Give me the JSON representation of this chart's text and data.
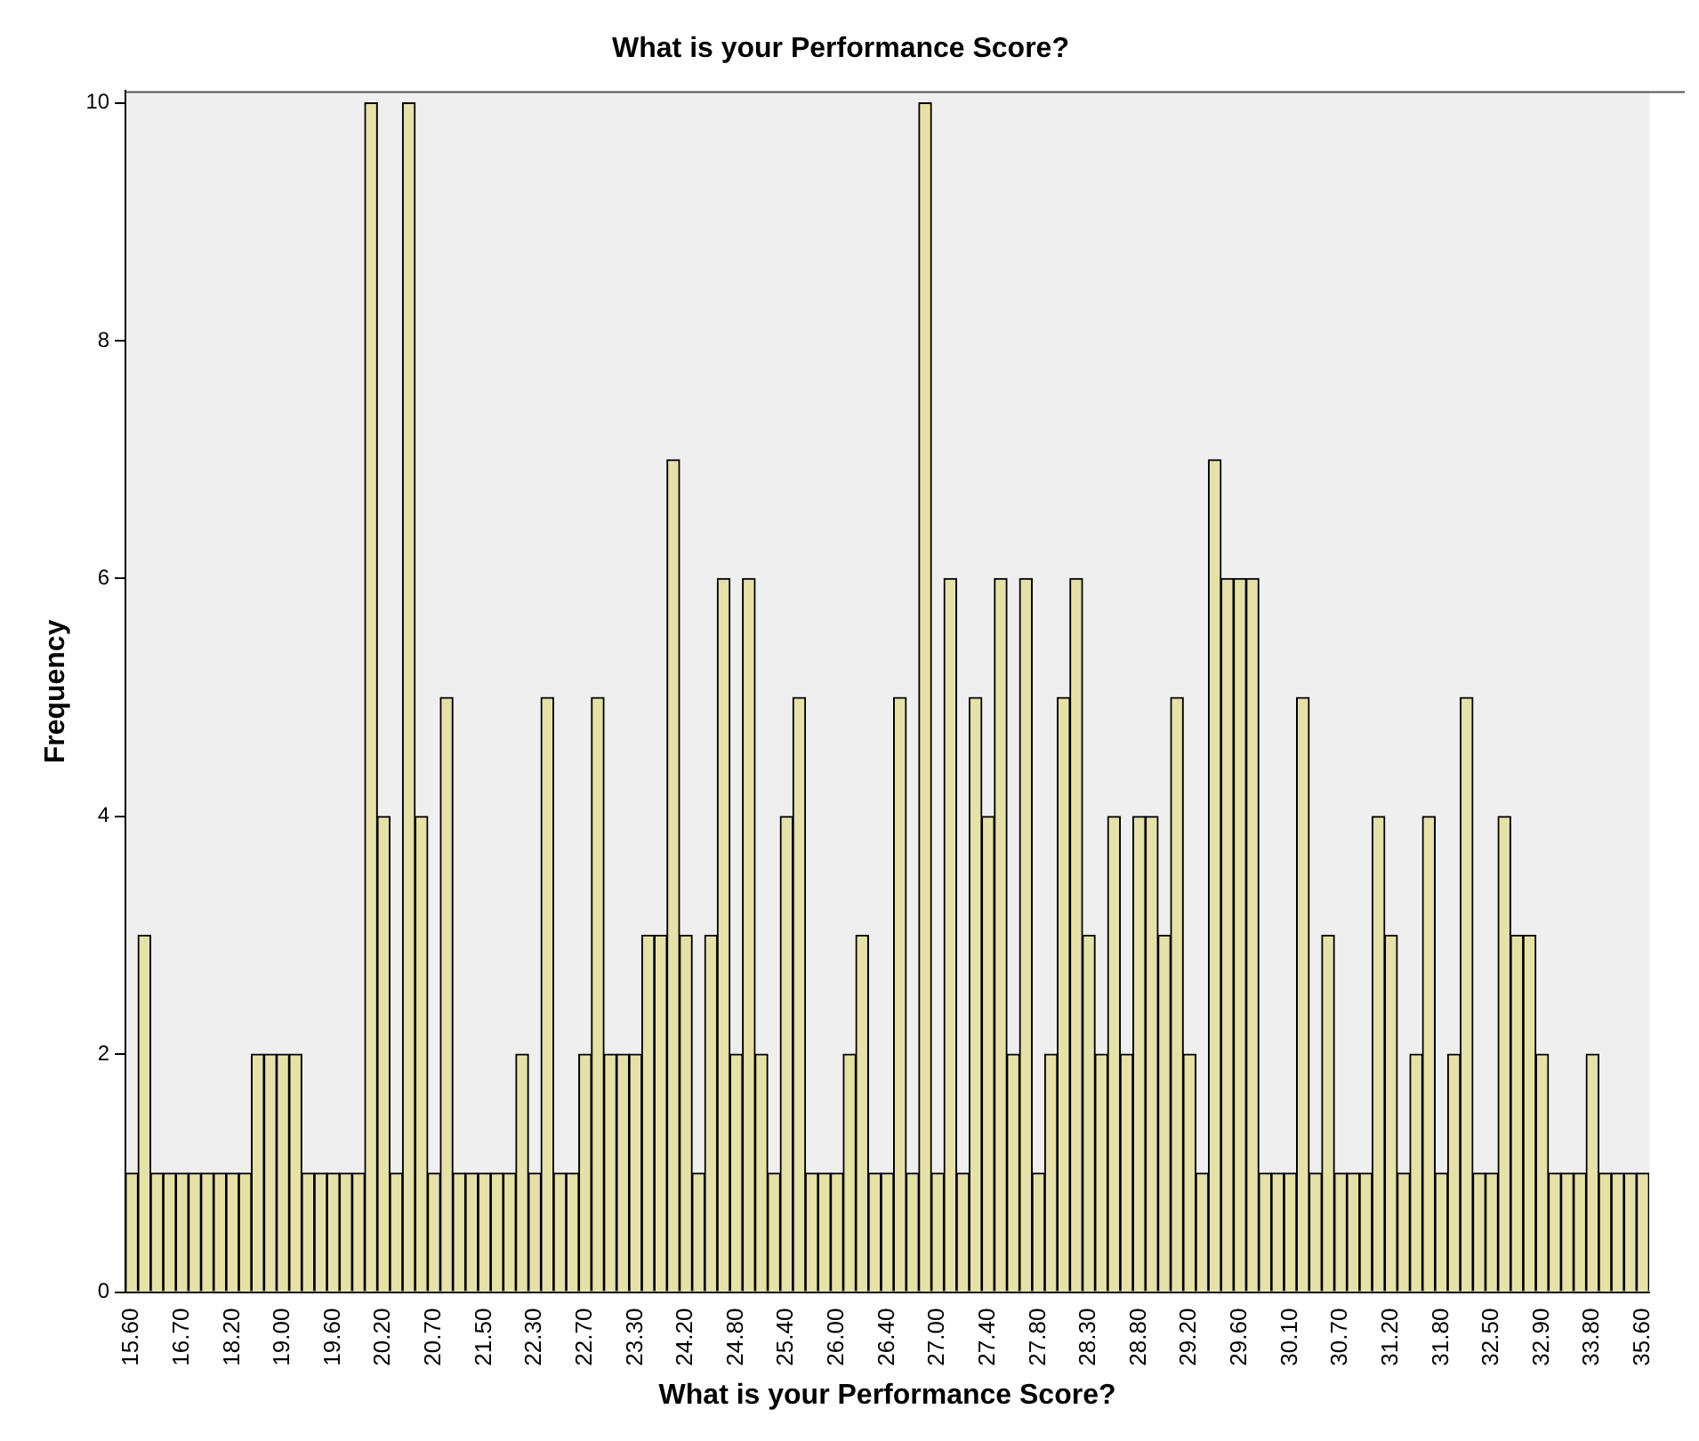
{
  "chart_data": {
    "type": "bar",
    "title": "What is your Performance Score?",
    "xlabel": "What is your Performance Score?",
    "ylabel": "Frequency",
    "categories": [
      "15.60",
      null,
      null,
      null,
      "16.70",
      null,
      null,
      null,
      "18.20",
      null,
      null,
      null,
      "19.00",
      null,
      null,
      null,
      "19.60",
      null,
      null,
      null,
      "20.20",
      null,
      null,
      null,
      "20.70",
      null,
      null,
      null,
      "21.50",
      null,
      null,
      null,
      "22.30",
      null,
      null,
      null,
      "22.70",
      null,
      null,
      null,
      "23.30",
      null,
      null,
      null,
      "24.20",
      null,
      null,
      null,
      "24.80",
      null,
      null,
      null,
      "25.40",
      null,
      null,
      null,
      "26.00",
      null,
      null,
      null,
      "26.40",
      null,
      null,
      null,
      "27.00",
      null,
      null,
      null,
      "27.40",
      null,
      null,
      null,
      "27.80",
      null,
      null,
      null,
      "28.30",
      null,
      null,
      null,
      "28.80",
      null,
      null,
      null,
      "29.20",
      null,
      null,
      null,
      "29.60",
      null,
      null,
      null,
      "30.10",
      null,
      null,
      null,
      "30.70",
      null,
      null,
      null,
      "31.20",
      null,
      null,
      null,
      "31.80",
      null,
      null,
      null,
      "32.50",
      null,
      null,
      null,
      "32.90",
      null,
      null,
      null,
      "33.80",
      null,
      null,
      null,
      "35.60"
    ],
    "values": [
      1,
      3,
      1,
      1,
      1,
      1,
      1,
      1,
      1,
      1,
      2,
      2,
      2,
      2,
      1,
      1,
      1,
      1,
      1,
      10,
      4,
      1,
      10,
      4,
      1,
      5,
      1,
      1,
      1,
      1,
      1,
      2,
      1,
      5,
      1,
      1,
      2,
      5,
      2,
      2,
      2,
      3,
      3,
      7,
      3,
      1,
      3,
      6,
      2,
      6,
      2,
      1,
      4,
      5,
      1,
      1,
      1,
      2,
      3,
      1,
      1,
      5,
      1,
      10,
      1,
      6,
      1,
      5,
      4,
      6,
      2,
      6,
      1,
      2,
      5,
      6,
      3,
      2,
      4,
      2,
      4,
      4,
      3,
      5,
      2,
      1,
      7,
      6,
      6,
      6,
      1,
      1,
      1,
      5,
      1,
      3,
      1,
      1,
      1,
      4,
      3,
      1,
      2,
      4,
      1,
      2,
      5,
      1,
      1,
      4,
      3,
      3,
      2,
      1,
      1,
      1,
      2,
      1,
      1,
      1,
      1
    ],
    "color": "#e6e1a8",
    "ylim": [
      0,
      10.1
    ],
    "yticks": [
      0,
      2,
      4,
      6,
      8,
      10
    ],
    "grid": false,
    "legend": false
  }
}
